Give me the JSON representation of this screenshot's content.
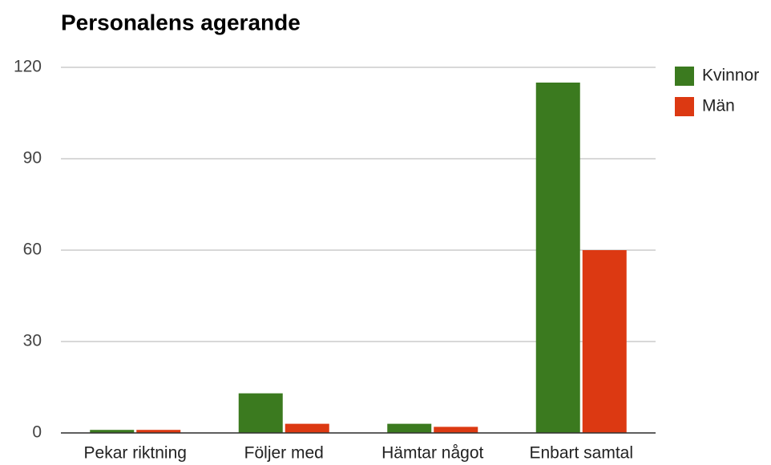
{
  "chart_data": {
    "type": "bar",
    "title": "Personalens agerande",
    "categories": [
      "Pekar riktning",
      "Följer med",
      "Hämtar något",
      "Enbart samtal"
    ],
    "series": [
      {
        "name": "Kvinnor",
        "color": "#3b7a1f",
        "values": [
          1,
          13,
          3,
          115
        ]
      },
      {
        "name": "Män",
        "color": "#dc3912",
        "values": [
          1,
          3,
          2,
          60
        ]
      }
    ],
    "ylim": [
      0,
      120
    ],
    "yticks": [
      0,
      30,
      60,
      90,
      120
    ],
    "grid": true,
    "legend": "right"
  }
}
